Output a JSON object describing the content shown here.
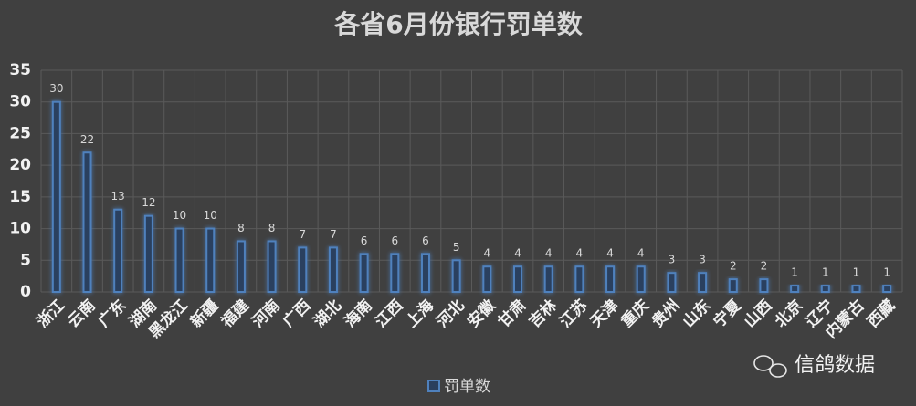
{
  "chart_data": {
    "type": "bar",
    "title": "各省6月份银行罚单数",
    "categories": [
      "浙江",
      "云南",
      "广东",
      "湖南",
      "黑龙江",
      "新疆",
      "福建",
      "河南",
      "广西",
      "湖北",
      "海南",
      "江西",
      "上海",
      "河北",
      "安徽",
      "甘肃",
      "吉林",
      "江苏",
      "天津",
      "重庆",
      "贵州",
      "山东",
      "宁夏",
      "山西",
      "北京",
      "辽宁",
      "内蒙古",
      "西藏"
    ],
    "series": [
      {
        "name": "罚单数",
        "color": "#4f81bd",
        "values": [
          30,
          22,
          13,
          12,
          10,
          10,
          8,
          8,
          7,
          7,
          6,
          6,
          6,
          5,
          4,
          4,
          4,
          4,
          4,
          4,
          3,
          3,
          2,
          2,
          1,
          1,
          1,
          1
        ]
      }
    ],
    "ylim": [
      0,
      35
    ],
    "yticks": [
      0,
      5,
      10,
      15,
      20,
      25,
      30,
      35
    ],
    "grid": true,
    "legend": "bottom",
    "watermark": "信鸽数据"
  }
}
